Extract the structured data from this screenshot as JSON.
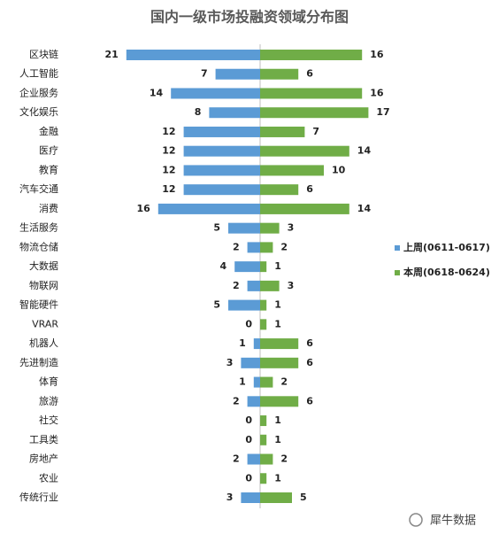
{
  "chart_data": {
    "type": "bar",
    "title": "国内一级市场投融资领域分布图",
    "categories": [
      "区块链",
      "人工智能",
      "企业服务",
      "文化娱乐",
      "金融",
      "医疗",
      "教育",
      "汽车交通",
      "消费",
      "生活服务",
      "物流仓储",
      "大数据",
      "物联网",
      "智能硬件",
      "VRAR",
      "机器人",
      "先进制造",
      "体育",
      "旅游",
      "社交",
      "工具类",
      "房地产",
      "农业",
      "传统行业"
    ],
    "series": [
      {
        "name": "上周(0611-0617)",
        "color": "#5b9bd5",
        "values": [
          21,
          7,
          14,
          8,
          12,
          12,
          12,
          12,
          16,
          5,
          2,
          4,
          2,
          5,
          0,
          1,
          3,
          1,
          2,
          0,
          0,
          2,
          0,
          3
        ]
      },
      {
        "name": "本周(0618-0624)",
        "color": "#70ad47",
        "values": [
          16,
          6,
          16,
          17,
          7,
          14,
          10,
          6,
          14,
          3,
          2,
          1,
          3,
          1,
          1,
          6,
          6,
          2,
          6,
          1,
          1,
          2,
          1,
          5
        ]
      }
    ],
    "watermark": "犀牛数据"
  }
}
